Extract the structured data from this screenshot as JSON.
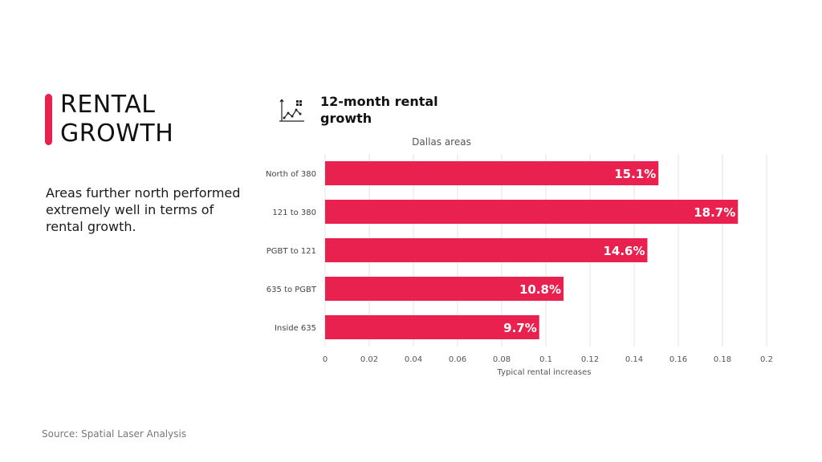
{
  "page": {
    "heading_line1": "RENTAL",
    "heading_line2": "GROWTH",
    "description": "Areas further north performed extremely well in terms of rental growth.",
    "chart_heading": "12-month rental growth",
    "chart_icon": "scatter-chart-icon",
    "source": "Source: Spatial Laser Analysis"
  },
  "colors": {
    "accent": "#e8214f",
    "bar": "#e8214f",
    "grid": "#e6e6e6"
  },
  "chart_data": {
    "type": "bar",
    "orientation": "horizontal",
    "title": "Dallas areas",
    "categories": [
      "North of 380",
      "121 to 380",
      "PGBT to 121",
      "635 to PGBT",
      "Inside 635"
    ],
    "values": [
      0.151,
      0.187,
      0.146,
      0.108,
      0.097
    ],
    "data_labels": [
      "15.1%",
      "18.7%",
      "14.6%",
      "10.8%",
      "9.7%"
    ],
    "xlabel": "Typical rental increases",
    "ylabel": "",
    "xlim": [
      0,
      0.2
    ],
    "xticks": [
      0,
      0.02,
      0.04,
      0.06,
      0.08,
      0.1,
      0.12,
      0.14,
      0.16,
      0.18,
      0.2
    ],
    "xtick_labels": [
      "0",
      "0.02",
      "0.04",
      "0.06",
      "0.08",
      "0.1",
      "0.12",
      "0.14",
      "0.16",
      "0.18",
      "0.2"
    ],
    "grid": true,
    "legend": "none"
  }
}
